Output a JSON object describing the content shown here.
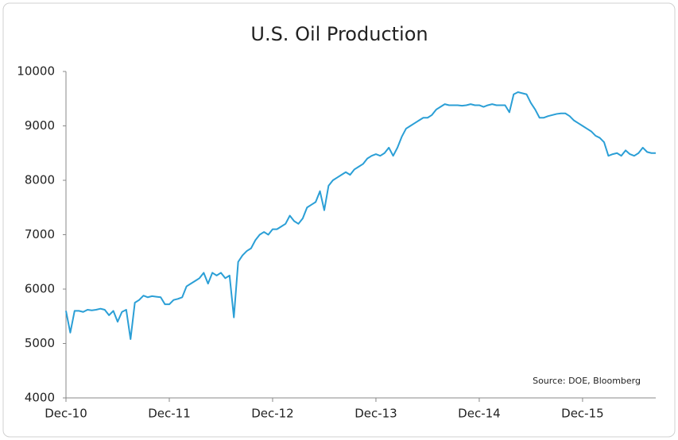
{
  "chart_data": {
    "type": "line",
    "title": "U.S. Oil Production",
    "annotation": "Source: DOE, Bloomberg",
    "categories": [
      "Dec-10",
      null,
      null,
      null,
      null,
      null,
      null,
      null,
      null,
      null,
      null,
      null,
      null,
      null,
      null,
      null,
      null,
      null,
      null,
      null,
      null,
      null,
      null,
      null,
      "Dec-11",
      null,
      null,
      null,
      null,
      null,
      null,
      null,
      null,
      null,
      null,
      null,
      null,
      null,
      null,
      null,
      null,
      null,
      null,
      null,
      null,
      null,
      null,
      null,
      "Dec-12",
      null,
      null,
      null,
      null,
      null,
      null,
      null,
      null,
      null,
      null,
      null,
      null,
      null,
      null,
      null,
      null,
      null,
      null,
      null,
      null,
      null,
      null,
      null,
      "Dec-13",
      null,
      null,
      null,
      null,
      null,
      null,
      null,
      null,
      null,
      null,
      null,
      null,
      null,
      null,
      null,
      null,
      null,
      null,
      null,
      null,
      null,
      null,
      null,
      "Dec-14",
      null,
      null,
      null,
      null,
      null,
      null,
      null,
      null,
      null,
      null,
      null,
      null,
      null,
      null,
      null,
      null,
      null,
      null,
      null,
      null,
      null,
      null,
      null,
      "Dec-15",
      null,
      null,
      null,
      null,
      null,
      null,
      null,
      null,
      null,
      null,
      null,
      null,
      null,
      null,
      null,
      null,
      null
    ],
    "series": [
      {
        "name": "U.S. Oil Production",
        "color": "#2b9fd6",
        "values": [
          5600,
          5200,
          5600,
          5600,
          5580,
          5620,
          5610,
          5620,
          5640,
          5620,
          5520,
          5600,
          5400,
          5580,
          5620,
          5080,
          5750,
          5800,
          5880,
          5850,
          5870,
          5860,
          5850,
          5720,
          5720,
          5800,
          5820,
          5850,
          6050,
          6100,
          6150,
          6200,
          6300,
          6100,
          6300,
          6250,
          6300,
          6200,
          6250,
          5480,
          6500,
          6620,
          6700,
          6750,
          6900,
          7000,
          7050,
          7000,
          7100,
          7100,
          7150,
          7200,
          7350,
          7250,
          7200,
          7300,
          7500,
          7550,
          7600,
          7800,
          7450,
          7900,
          8000,
          8050,
          8100,
          8150,
          8100,
          8200,
          8250,
          8300,
          8400,
          8450,
          8480,
          8450,
          8500,
          8600,
          8450,
          8600,
          8800,
          8950,
          9000,
          9050,
          9100,
          9150,
          9150,
          9200,
          9300,
          9350,
          9400,
          9380,
          9380,
          9380,
          9370,
          9380,
          9400,
          9380,
          9380,
          9350,
          9380,
          9400,
          9380,
          9380,
          9380,
          9250,
          9580,
          9620,
          9600,
          9580,
          9420,
          9300,
          9150,
          9150,
          9180,
          9200,
          9220,
          9230,
          9230,
          9180,
          9100,
          9050,
          9000,
          8950,
          8900,
          8820,
          8780,
          8700,
          8450,
          8480,
          8500,
          8450,
          8550,
          8480,
          8450,
          8500,
          8600,
          8520,
          8500,
          8500
        ]
      }
    ],
    "ylim": [
      4000,
      10000
    ],
    "yticks": [
      4000,
      5000,
      6000,
      7000,
      8000,
      9000,
      10000
    ],
    "grid": false
  }
}
